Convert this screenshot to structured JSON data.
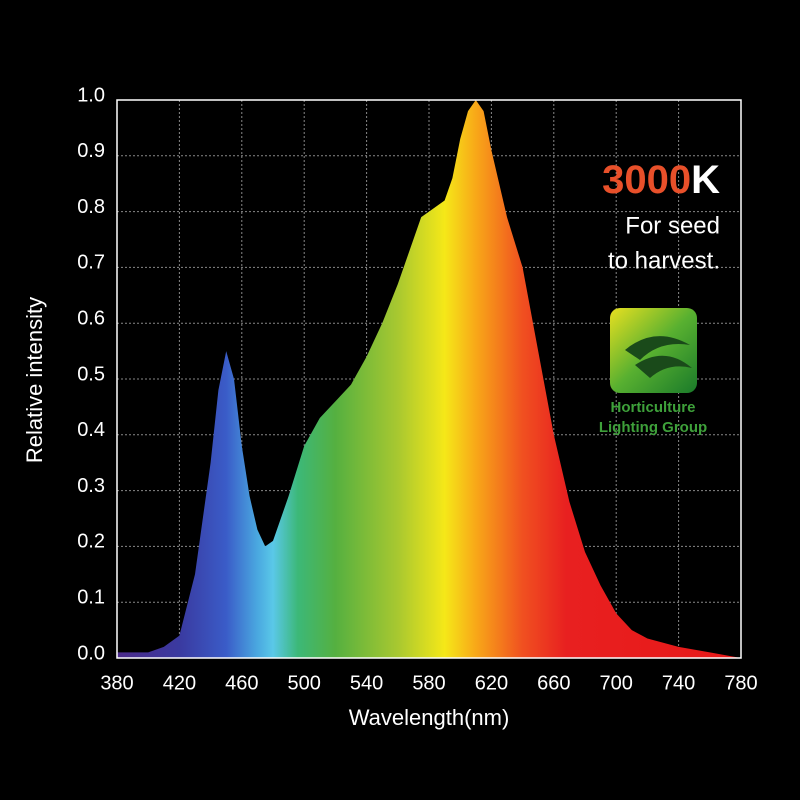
{
  "chart_data": {
    "type": "area",
    "x_label": "Wavelength(nm)",
    "y_label": "Relative intensity",
    "x": [
      380,
      400,
      410,
      420,
      430,
      440,
      445,
      450,
      455,
      460,
      465,
      470,
      475,
      480,
      490,
      500,
      510,
      520,
      530,
      540,
      550,
      560,
      570,
      575,
      580,
      590,
      595,
      600,
      605,
      610,
      615,
      620,
      630,
      640,
      650,
      660,
      670,
      680,
      690,
      700,
      710,
      720,
      740,
      760,
      780
    ],
    "values": [
      0.01,
      0.01,
      0.02,
      0.04,
      0.15,
      0.35,
      0.48,
      0.55,
      0.5,
      0.38,
      0.29,
      0.23,
      0.2,
      0.21,
      0.29,
      0.38,
      0.43,
      0.46,
      0.49,
      0.54,
      0.6,
      0.67,
      0.75,
      0.79,
      0.8,
      0.82,
      0.86,
      0.93,
      0.98,
      1.0,
      0.98,
      0.91,
      0.79,
      0.7,
      0.55,
      0.4,
      0.28,
      0.19,
      0.13,
      0.08,
      0.05,
      0.035,
      0.02,
      0.01,
      0.0
    ],
    "xlim": [
      380,
      780
    ],
    "ylim": [
      0,
      1
    ],
    "xticks": [
      380,
      420,
      460,
      500,
      540,
      580,
      620,
      660,
      700,
      740,
      780
    ],
    "yticks": [
      {
        "value": 0,
        "label": "0.0"
      },
      0.1,
      0.2,
      0.3,
      0.4,
      0.5,
      0.6,
      0.7,
      0.8,
      0.9,
      {
        "value": 1,
        "label": "1.0"
      }
    ],
    "grid": true,
    "annotations": [
      "3000",
      "K",
      "For seed",
      "to harvest.",
      "Horticulture",
      "Lighting Group"
    ]
  }
}
